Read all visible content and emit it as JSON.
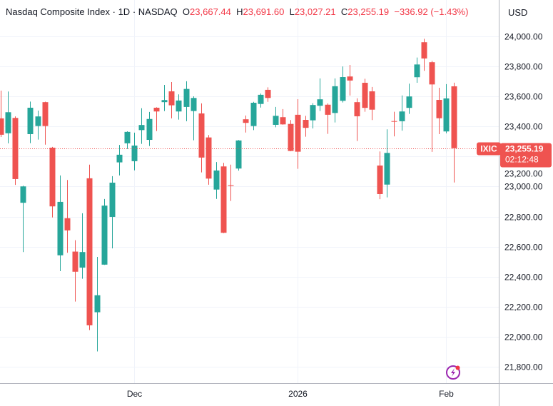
{
  "header": {
    "symbol_name": "Nasdaq Composite Index",
    "interval": "1D",
    "exchange": "NASDAQ",
    "open_label": "O",
    "open": "23,667.44",
    "high_label": "H",
    "high": "23,691.60",
    "low_label": "L",
    "low": "23,027.21",
    "close_label": "C",
    "close": "23,255.19",
    "change": "−336.92 (−1.43%)"
  },
  "price_axis": {
    "currency": "USD"
  },
  "last_price": {
    "ticker": "IXIC",
    "price": "23,255.19",
    "countdown": "02:12:48"
  },
  "colors": {
    "up": "#26a69a",
    "down": "#ef5350",
    "grid": "#f0f3fa",
    "accent": "#9c27b0"
  },
  "icons": {
    "bottom": "lightning-bolt-icon"
  },
  "chart_data": {
    "type": "candlestick",
    "ylim": [
      21700,
      24100
    ],
    "y_ticks": [
      21800,
      22000,
      22200,
      22400,
      22600,
      22800,
      23000,
      23200,
      23400,
      23600,
      23800,
      24000
    ],
    "y_tick_labels": [
      "21,800.00",
      "22,000.00",
      "22,200.00",
      "22,400.00",
      "22,600.00",
      "22,800.00",
      "23,000.00",
      "23,200.00",
      "23,400.00",
      "23,600.00",
      "23,800.00",
      "24,000.00"
    ],
    "x_labels": [
      {
        "index": 18,
        "label": "Dec"
      },
      {
        "index": 40,
        "label": "2026"
      },
      {
        "index": 60,
        "label": "Feb"
      }
    ],
    "grid": true,
    "candles": [
      [
        23454,
        23639,
        23330,
        23345
      ],
      [
        23355,
        23633,
        23288,
        23495
      ],
      [
        23457,
        23467,
        23011,
        23050
      ],
      [
        22892,
        23006,
        22564,
        23001
      ],
      [
        23349,
        23566,
        23289,
        23525
      ],
      [
        23403,
        23506,
        23313,
        23467
      ],
      [
        23562,
        23565,
        23279,
        23403
      ],
      [
        23259,
        23264,
        22794,
        22868
      ],
      [
        22542,
        23074,
        22437,
        22898
      ],
      [
        22789,
        23044,
        22559,
        22708
      ],
      [
        22567,
        22643,
        22234,
        22433
      ],
      [
        22460,
        22822,
        22386,
        22564
      ],
      [
        23055,
        23146,
        22044,
        22076
      ],
      [
        22163,
        22532,
        21902,
        22276
      ],
      [
        22480,
        22917,
        22478,
        22873
      ],
      [
        22798,
        23069,
        22588,
        23026
      ],
      [
        23161,
        23277,
        23074,
        23212
      ],
      [
        23288,
        23368,
        23250,
        23364
      ],
      [
        23169,
        23359,
        23108,
        23273
      ],
      [
        23376,
        23522,
        23284,
        23410
      ],
      [
        23311,
        23497,
        23270,
        23450
      ],
      [
        23525,
        23528,
        23370,
        23500
      ],
      [
        23562,
        23677,
        23503,
        23576
      ],
      [
        23634,
        23696,
        23454,
        23541
      ],
      [
        23500,
        23614,
        23446,
        23573
      ],
      [
        23530,
        23701,
        23435,
        23650
      ],
      [
        23503,
        23601,
        23308,
        23590
      ],
      [
        23487,
        23554,
        23094,
        23193
      ],
      [
        23327,
        23343,
        23012,
        23053
      ],
      [
        22980,
        23163,
        22918,
        23107
      ],
      [
        23134,
        23158,
        22690,
        22692
      ],
      [
        23009,
        23146,
        22904,
        23004
      ],
      [
        23120,
        23310,
        23106,
        23307
      ],
      [
        23448,
        23473,
        23360,
        23424
      ],
      [
        23403,
        23564,
        23376,
        23558
      ],
      [
        23550,
        23619,
        23526,
        23611
      ],
      [
        23644,
        23661,
        23564,
        23590
      ],
      [
        23411,
        23530,
        23395,
        23471
      ],
      [
        23462,
        23516,
        23412,
        23414
      ],
      [
        23417,
        23443,
        23235,
        23237
      ],
      [
        23478,
        23582,
        23118,
        23232
      ],
      [
        23444,
        23471,
        23332,
        23391
      ],
      [
        23441,
        23555,
        23387,
        23543
      ],
      [
        23538,
        23720,
        23503,
        23581
      ],
      [
        23545,
        23554,
        23351,
        23478
      ],
      [
        23490,
        23720,
        23427,
        23668
      ],
      [
        23571,
        23800,
        23560,
        23729
      ],
      [
        23733,
        23810,
        23606,
        23706
      ],
      [
        23562,
        23588,
        23303,
        23468
      ],
      [
        23691,
        23718,
        23498,
        23524
      ],
      [
        23634,
        23663,
        23443,
        23512
      ],
      [
        23140,
        23234,
        22916,
        22950
      ],
      [
        23013,
        23381,
        22928,
        23224
      ],
      [
        23436,
        23498,
        23334,
        23433
      ],
      [
        23435,
        23607,
        23372,
        23500
      ],
      [
        23524,
        23685,
        23484,
        23600
      ],
      [
        23728,
        23859,
        23691,
        23813
      ],
      [
        23961,
        23984,
        23771,
        23853
      ],
      [
        23828,
        23837,
        23231,
        23680
      ],
      [
        23577,
        23658,
        23349,
        23455
      ],
      [
        23367,
        23682,
        23355,
        23587
      ],
      [
        23667.44,
        23691.6,
        23027.21,
        23255.19
      ]
    ],
    "candle_fields": [
      "open",
      "high",
      "low",
      "close"
    ]
  }
}
